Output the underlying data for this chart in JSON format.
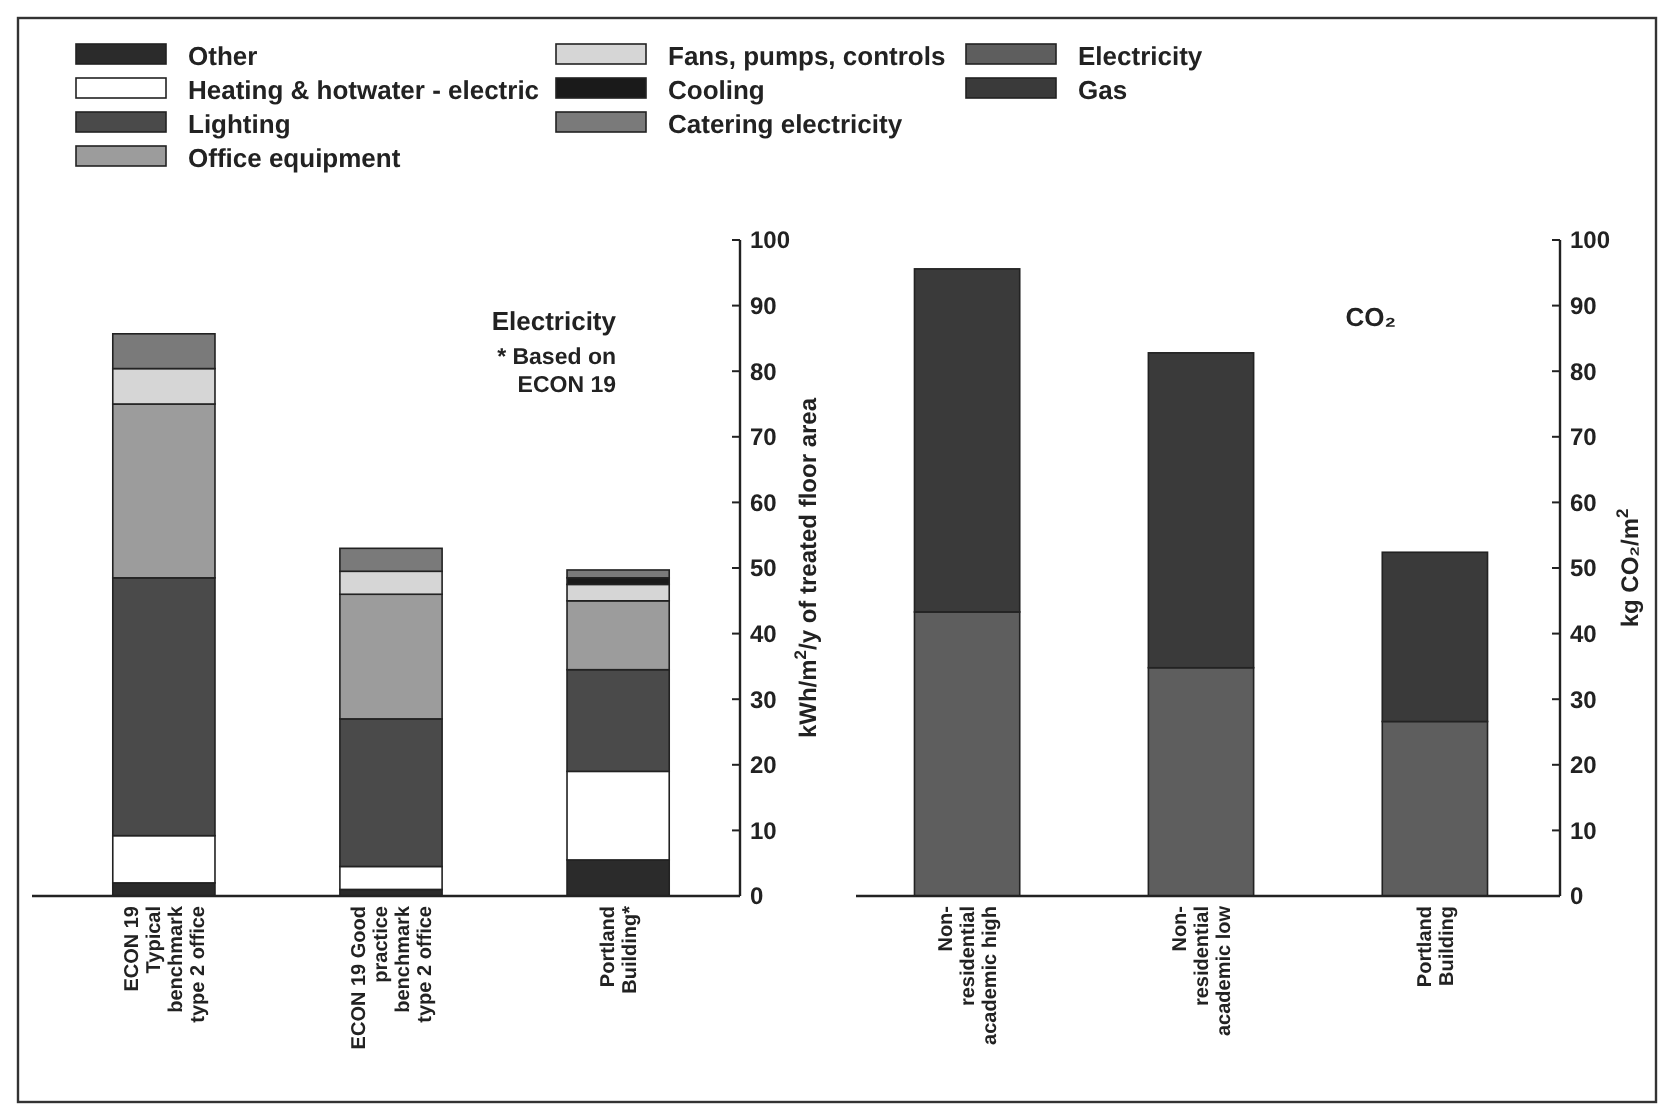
{
  "chart_data": [
    {
      "type": "bar",
      "title": "Electricity",
      "stacked": true,
      "legend": "top",
      "grid": false,
      "ylabel": "kWh/m$^{2}$/y of treated floor area",
      "categories": [
        "ECON 19 Typical benchmark type 2 office",
        "ECON 19 Good practice benchmark type 2 office",
        "Portland Building*"
      ],
      "ylim": [
        0,
        100
      ],
      "yticks": [
        0,
        10,
        20,
        30,
        40,
        50,
        60,
        70,
        80,
        90,
        100
      ],
      "annotations": [
        "* Based on ECON 19"
      ],
      "series": [
        {
          "name": "Other",
          "color": "#2b2b2b",
          "values": [
            2,
            1,
            5.5
          ]
        },
        {
          "name": "Heating & hotwater - electric",
          "color": "#ffffff",
          "values": [
            7.2,
            3.5,
            13.5
          ]
        },
        {
          "name": "Lighting",
          "color": "#4a4a4a",
          "values": [
            39.3,
            22.5,
            15.5
          ]
        },
        {
          "name": "Office equipment",
          "color": "#9c9c9c",
          "values": [
            26.5,
            19,
            10.5
          ]
        },
        {
          "name": "Fans, pumps, controls",
          "color": "#d6d6d6",
          "values": [
            5.4,
            3.5,
            2.5
          ]
        },
        {
          "name": "Cooling",
          "color": "#1a1a1a",
          "values": [
            0,
            0,
            1
          ]
        },
        {
          "name": "Catering electricity",
          "color": "#7a7a7a",
          "values": [
            5.3,
            3.5,
            1.2
          ]
        }
      ]
    },
    {
      "type": "bar",
      "title": "CO₂",
      "stacked": true,
      "legend": "top",
      "grid": false,
      "ylabel": "kg CO₂/m$^{2}$",
      "categories": [
        "Non-residential academic high",
        "Non-residential academic low",
        "Portland Building"
      ],
      "ylim": [
        0,
        100
      ],
      "yticks": [
        0,
        10,
        20,
        30,
        40,
        50,
        60,
        70,
        80,
        90,
        100
      ],
      "series": [
        {
          "name": "Electricity",
          "color": "#5e5e5e",
          "values": [
            43.3,
            34.8,
            26.6
          ]
        },
        {
          "name": "Gas",
          "color": "#3a3a3a",
          "values": [
            52.3,
            48,
            25.8
          ]
        }
      ]
    }
  ]
}
